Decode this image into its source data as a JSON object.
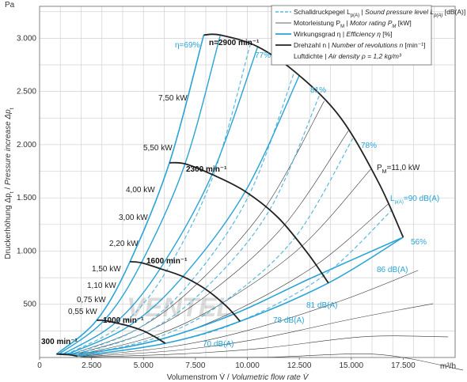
{
  "chart_data": {
    "type": "line",
    "xlabel_de": "Volumenstrom V̇",
    "xlabel_en": "Volumetric flow rate V̇",
    "ylabel_de": "Druckerhöhung Δp",
    "ylabel_en": "Pressure increase Δp",
    "x_unit": "m³/h",
    "y_unit": "Pa",
    "xlim": [
      0,
      20000
    ],
    "ylim": [
      0,
      3300
    ],
    "x_ticks": [
      0,
      2500,
      5000,
      7500,
      10000,
      12500,
      15000,
      17500
    ],
    "x_tick_labels": [
      "0",
      "2.500",
      "5.000",
      "7.500",
      "10.000",
      "12.500",
      "15.000",
      "17.500"
    ],
    "y_ticks": [
      500,
      1000,
      1500,
      2000,
      2500,
      3000
    ],
    "y_tick_labels": [
      "500",
      "1.000",
      "1.500",
      "2.000",
      "2.500",
      "3.000"
    ],
    "grid": true,
    "legend_position": "top-right",
    "legend": [
      {
        "kind": "dashed-blue",
        "de": "Schalldruckpegel L",
        "de_sub": "p(A)",
        "en": "Sound pressure level L",
        "en_sub": "p(A)",
        "unit": "[dB(A)]"
      },
      {
        "kind": "thin-black",
        "de": "Motorleistung P",
        "de_sub": "M",
        "en": "Motor rating P",
        "en_sub": "M",
        "unit": "[kW]"
      },
      {
        "kind": "blue",
        "de": "Wirkungsgrad η",
        "en": "Efficiency η",
        "unit": "[%]"
      },
      {
        "kind": "thick-black",
        "de": "Drehzahl n",
        "en": "Number of revolutions n",
        "unit": "[min⁻¹]"
      },
      {
        "kind": "none",
        "de": "Luftdichte",
        "en": "Air density ρ = 1,2 kg/m³",
        "unit": ""
      }
    ],
    "series": [
      {
        "name": "n=2900 min⁻¹",
        "x": [
          7900,
          8700,
          10500,
          12500,
          14500,
          16300,
          17500
        ],
        "y": [
          3030,
          3030,
          2920,
          2650,
          2250,
          1650,
          1130
        ]
      },
      {
        "name": "2300 min⁻¹",
        "x": [
          6250,
          7000,
          8300,
          9900,
          11500,
          12900,
          13900
        ],
        "y": [
          1830,
          1820,
          1720,
          1560,
          1310,
          980,
          700
        ]
      },
      {
        "name": "1600 min⁻¹",
        "x": [
          4350,
          4900,
          5800,
          6900,
          8000,
          9000,
          9650
        ],
        "y": [
          900,
          890,
          835,
          760,
          640,
          480,
          340
        ]
      },
      {
        "name": "1000 min⁻¹",
        "x": [
          2750,
          3100,
          3650,
          4300,
          5000,
          5600,
          6050
        ],
        "y": [
          350,
          348,
          326,
          296,
          250,
          188,
          133
        ]
      },
      {
        "name": "300 min⁻¹",
        "x": [
          820,
          930,
          1100,
          1300,
          1500,
          1690,
          1820
        ],
        "y": [
          32,
          31,
          29,
          27,
          23,
          17,
          12
        ]
      }
    ],
    "efficiency_lines": [
      {
        "label": "η=69%",
        "x": [
          820,
          7900
        ],
        "y": [
          32,
          3030
        ]
      },
      {
        "label": "77%",
        "x": [
          900,
          10500
        ],
        "y": [
          30,
          2920
        ]
      },
      {
        "label": "81%",
        "x": [
          1100,
          12500
        ],
        "y": [
          25,
          2650
        ]
      },
      {
        "label": "78%",
        "x": [
          1300,
          14500
        ],
        "y": [
          20,
          2250
        ]
      },
      {
        "label": "56%",
        "x": [
          1820,
          17500
        ],
        "y": [
          12,
          1130
        ]
      }
    ],
    "motor_power_labels": [
      "7,50 kW",
      "5,50 kW",
      "4,00 kW",
      "3,00 kW",
      "2,20 kW",
      "1,50 kW",
      "1,10 kW",
      "0,75 kW",
      "0,55 kW"
    ],
    "motor_power_values_kw": [
      7.5,
      5.5,
      4.0,
      3.0,
      2.2,
      1.5,
      1.1,
      0.75,
      0.55
    ],
    "motor_power_max_label": "P",
    "motor_power_max_sub": "M",
    "motor_power_max_value": "=11,0 kW",
    "sound_levels": [
      {
        "label": "L",
        "sub": "p(A)",
        "value": "=90 dB(A)"
      },
      {
        "label": "86 dB(A)"
      },
      {
        "label": "81 dB(A)"
      },
      {
        "label": "78 dB(A)"
      },
      {
        "label": "70 dB(A)"
      }
    ]
  },
  "watermark": "VENTEL",
  "colors": {
    "blue": "#29a3d6",
    "lightblue": "#5ab8e0",
    "black": "#222222",
    "grid": "#d2d2d2"
  }
}
